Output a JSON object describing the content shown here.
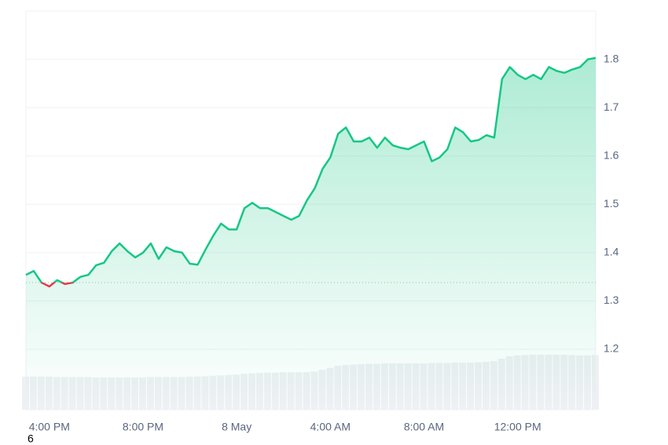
{
  "chart_data": {
    "type": "line",
    "categories": [
      null,
      null,
      null,
      "4:00 PM",
      null,
      null,
      null,
      null,
      null,
      null,
      null,
      null,
      null,
      null,
      null,
      "8:00 PM",
      null,
      null,
      null,
      null,
      null,
      null,
      null,
      null,
      null,
      null,
      null,
      "8 May",
      null,
      null,
      null,
      null,
      null,
      null,
      null,
      null,
      null,
      null,
      null,
      "4:00 AM",
      null,
      null,
      null,
      null,
      null,
      null,
      null,
      null,
      null,
      null,
      null,
      "8:00 AM",
      null,
      null,
      null,
      null,
      null,
      null,
      null,
      null,
      null,
      null,
      null,
      "12:00 PM",
      null,
      null,
      null,
      null,
      null,
      null,
      null,
      null,
      null,
      null
    ],
    "values": [
      1.354,
      1.362,
      1.338,
      1.33,
      1.343,
      1.335,
      1.338,
      1.35,
      1.354,
      1.374,
      1.379,
      1.403,
      1.419,
      1.403,
      1.39,
      1.4,
      1.419,
      1.387,
      1.411,
      1.403,
      1.4,
      1.377,
      1.375,
      1.406,
      1.435,
      1.46,
      1.448,
      1.448,
      1.492,
      1.503,
      1.492,
      1.492,
      1.484,
      1.476,
      1.468,
      1.476,
      1.508,
      1.533,
      1.573,
      1.597,
      1.646,
      1.659,
      1.63,
      1.63,
      1.638,
      1.617,
      1.638,
      1.622,
      1.617,
      1.614,
      1.622,
      1.63,
      1.589,
      1.597,
      1.614,
      1.659,
      1.649,
      1.63,
      1.633,
      1.643,
      1.638,
      1.759,
      1.784,
      1.768,
      1.759,
      1.768,
      1.759,
      1.784,
      1.776,
      1.772,
      1.779,
      1.784,
      1.8,
      1.803
    ],
    "reference": 1.338,
    "up_color": "#16c784",
    "down_color": "#ea3943",
    "volume": [
      8.3,
      8.3,
      8.3,
      8.3,
      8.2,
      8.2,
      8.2,
      8.2,
      8.2,
      8.1,
      8.1,
      8.1,
      8.1,
      8.1,
      8.1,
      8.1,
      8.2,
      8.2,
      8.2,
      8.2,
      8.2,
      8.3,
      8.3,
      8.4,
      8.5,
      8.6,
      8.7,
      8.8,
      9.0,
      9.1,
      9.2,
      9.3,
      9.3,
      9.4,
      9.4,
      9.4,
      9.4,
      9.6,
      10.0,
      10.5,
      11.0,
      11.2,
      11.3,
      11.4,
      11.5,
      11.5,
      11.6,
      11.6,
      11.6,
      11.6,
      11.6,
      11.6,
      11.7,
      11.7,
      11.7,
      11.8,
      11.8,
      11.8,
      11.9,
      12.0,
      12.2,
      12.8,
      13.4,
      13.6,
      13.7,
      13.8,
      13.8,
      13.8,
      13.8,
      13.8,
      13.7,
      13.6,
      13.6,
      13.7
    ],
    "volume_color": "#eef0f4",
    "y2lim": [
      0,
      100
    ],
    "ylim": [
      1.075,
      1.9
    ],
    "yticks": [
      1.2,
      1.3,
      1.4,
      1.5,
      1.6,
      1.7,
      1.8
    ],
    "grid": true,
    "footnote": "6"
  }
}
